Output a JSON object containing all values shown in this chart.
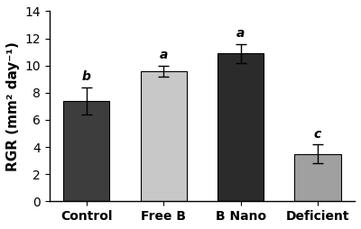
{
  "categories": [
    "Control",
    "Free B",
    "B Nano",
    "Deficient"
  ],
  "values": [
    7.4,
    9.6,
    10.9,
    3.5
  ],
  "errors": [
    1.0,
    0.4,
    0.7,
    0.7
  ],
  "bar_colors": [
    "#3d3d3d",
    "#c8c8c8",
    "#2b2b2b",
    "#a0a0a0"
  ],
  "letters": [
    "b",
    "a",
    "a",
    "c"
  ],
  "ylabel": "RGR (mm² day⁻¹)",
  "ylim": [
    0,
    14
  ],
  "yticks": [
    0,
    2,
    4,
    6,
    8,
    10,
    12,
    14
  ],
  "title": "",
  "edge_color": "black",
  "letter_fontsize": 10,
  "axis_fontsize": 11,
  "tick_fontsize": 10
}
